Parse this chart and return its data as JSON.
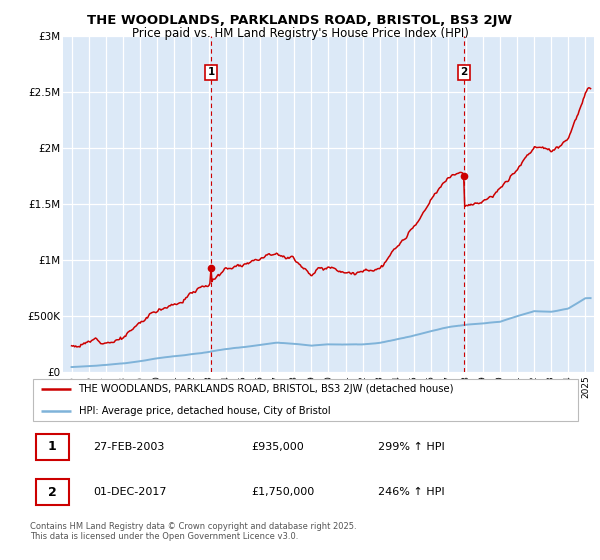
{
  "title": "THE WOODLANDS, PARKLANDS ROAD, BRISTOL, BS3 2JW",
  "subtitle": "Price paid vs. HM Land Registry's House Price Index (HPI)",
  "bg_color": "#dce9f7",
  "line1_color": "#cc0000",
  "line2_color": "#7fb3d9",
  "vline_color": "#cc0000",
  "ylim": [
    0,
    3000000
  ],
  "yticks": [
    0,
    500000,
    1000000,
    1500000,
    2000000,
    2500000,
    3000000
  ],
  "ytick_labels": [
    "£0",
    "£500K",
    "£1M",
    "£1.5M",
    "£2M",
    "£2.5M",
    "£3M"
  ],
  "legend_label1": "THE WOODLANDS, PARKLANDS ROAD, BRISTOL, BS3 2JW (detached house)",
  "legend_label2": "HPI: Average price, detached house, City of Bristol",
  "annotation1_date": "27-FEB-2003",
  "annotation1_price": "£935,000",
  "annotation1_hpi": "299% ↑ HPI",
  "annotation2_date": "01-DEC-2017",
  "annotation2_price": "£1,750,000",
  "annotation2_hpi": "246% ↑ HPI",
  "footer": "Contains HM Land Registry data © Crown copyright and database right 2025.\nThis data is licensed under the Open Government Licence v3.0.",
  "xlim_start": 1994.5,
  "xlim_end": 2025.5,
  "sale1_year": 2003.15,
  "sale1_price": 935000,
  "sale2_year": 2017.92,
  "sale2_price": 1750000
}
